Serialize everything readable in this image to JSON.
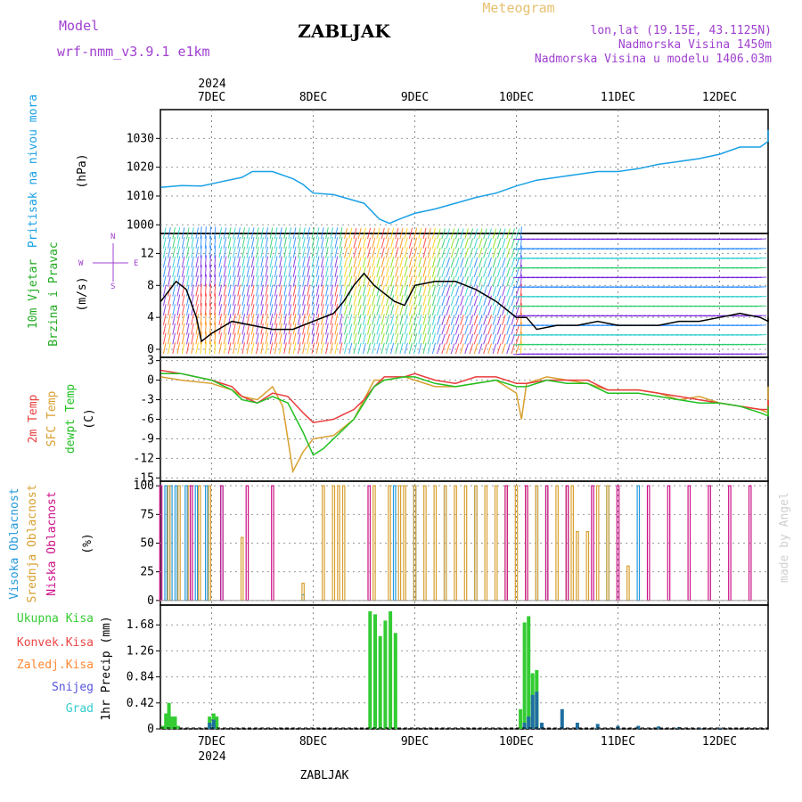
{
  "header": {
    "model_label": "Model",
    "model_name": "wrf-nmm_v3.9.1 e1km",
    "station": "ZABLJAK",
    "meteogram": "Meteogram",
    "coords": "lon,lat (19.15E, 43.1125N)",
    "elevation": "Nadmorska Visina 1450m",
    "model_elevation": "Nadmorska Visina u modelu 1406.03m",
    "footer_station": "ZABLJAK",
    "watermark": "made by Angel"
  },
  "colors": {
    "pressure": "#1aa0e6",
    "t2m": "#e83c3c",
    "tsfc": "#d8a030",
    "dewpoint": "#22c022",
    "high_cloud": "#2299dd",
    "mid_cloud": "#d8a030",
    "low_cloud": "#cc1188",
    "precip_total": "#33cc33",
    "precip_conv": "#ee4444",
    "precip_frozen": "#ff8833",
    "snow": "#5555dd",
    "graupel": "#33cccc",
    "model_text": "#a040d0",
    "wind_speed_label": "#22aa22"
  },
  "time_axis": {
    "year": "2024",
    "days": [
      "7DEC",
      "8DEC",
      "9DEC",
      "10DEC",
      "11DEC",
      "12DEC"
    ]
  },
  "panels": {
    "pressure": {
      "label": "Pritisak na nivou mora",
      "unit": "(hPa)",
      "ticks": [
        "1000",
        "1010",
        "1020",
        "1030"
      ]
    },
    "wind": {
      "label1": "10m Vjetar",
      "label2": "Brzina i Pravac",
      "unit": "(m/s)",
      "ticks": [
        "0",
        "4",
        "8",
        "12"
      ],
      "compass_w": "W",
      "compass_e": "E",
      "compass_n": "N",
      "compass_s": "S"
    },
    "temp": {
      "label1": "2m Temp",
      "label2": "SFC Temp",
      "label3": "dewpt Temp",
      "unit": "(C)",
      "ticks": [
        "-15",
        "-12",
        "-9",
        "-6",
        "-3",
        "0",
        "3"
      ]
    },
    "cloud": {
      "label1": "Visoka Oblacnost",
      "label2": "Srednja Oblacnost",
      "label3": "Niska Oblacnost",
      "unit": "(%)",
      "ticks": [
        "0",
        "25",
        "50",
        "75",
        "100"
      ]
    },
    "precip": {
      "legend": [
        "Ukupna Kisa",
        "Konvek.Kisa",
        "Zaledj.Kisa",
        "Snijeg",
        "Grad"
      ],
      "unit": "1hr Precip (mm)",
      "ticks": [
        "0",
        "0.42",
        "0.84",
        "1.26",
        "1.68"
      ]
    }
  },
  "chart_data": [
    {
      "type": "line",
      "title": "Pritisak na nivou mora",
      "ylabel": "(hPa)",
      "ylim": [
        1000,
        1034
      ],
      "x_unit": "days since 7DEC 00UTC",
      "series": [
        {
          "name": "Pritisak na nivou mora",
          "x": [
            -0.5,
            -0.3,
            -0.1,
            0.1,
            0.3,
            0.4,
            0.6,
            0.8,
            0.9,
            1.0,
            1.2,
            1.5,
            1.65,
            1.75,
            1.85,
            2.0,
            2.2,
            2.4,
            2.6,
            2.8,
            3.0,
            3.2,
            3.4,
            3.6,
            3.8,
            4.0,
            4.2,
            4.4,
            4.6,
            4.8,
            5.0,
            5.2,
            5.4,
            5.6,
            5.8,
            6.0,
            6.2,
            6.3
          ],
          "y": [
            1013,
            1013.6,
            1013.5,
            1015,
            1016.5,
            1018.5,
            1018.5,
            1016,
            1014,
            1011,
            1010.5,
            1007.5,
            1002,
            1000.5,
            1002,
            1004,
            1005.5,
            1007.5,
            1009.5,
            1011,
            1013.5,
            1015.5,
            1016.5,
            1017.5,
            1018.5,
            1018.5,
            1019.5,
            1021,
            1022,
            1023,
            1024.5,
            1027,
            1027,
            1029,
            1031.5,
            1032,
            1033,
            1032
          ]
        }
      ]
    },
    {
      "type": "line",
      "title": "10m Vjetar Brzina i Pravac",
      "ylabel": "(m/s)",
      "ylim": [
        -1,
        14.5
      ],
      "x_unit": "days since 7DEC 00UTC",
      "series": [
        {
          "name": "10m Vjetar",
          "x": [
            -0.5,
            -0.35,
            -0.25,
            -0.15,
            -0.1,
            0.0,
            0.2,
            0.4,
            0.6,
            0.8,
            1.0,
            1.2,
            1.3,
            1.4,
            1.5,
            1.6,
            1.7,
            1.8,
            1.9,
            2.0,
            2.2,
            2.4,
            2.6,
            2.8,
            3.0,
            3.1,
            3.2,
            3.4,
            3.6,
            3.8,
            4.0,
            4.2,
            4.4,
            4.6,
            4.8,
            5.0,
            5.2,
            5.4,
            5.6,
            5.8,
            6.0,
            6.2,
            6.3
          ],
          "y": [
            6,
            8.5,
            7.5,
            4,
            1,
            2,
            3.5,
            3,
            2.5,
            2.5,
            3.5,
            4.5,
            6,
            8,
            9.5,
            8,
            7,
            6,
            5.5,
            8,
            8.5,
            8.5,
            7.5,
            6,
            4,
            4,
            2.5,
            3,
            3,
            3.5,
            3,
            3,
            3,
            3.5,
            3.5,
            4,
            4.5,
            4,
            3.5,
            3.5,
            4,
            4,
            4
          ]
        }
      ]
    },
    {
      "type": "line",
      "title": "2m Temp / SFC Temp / dewpt Temp",
      "ylabel": "(C)",
      "ylim": [
        -15,
        3
      ],
      "x_unit": "days since 7DEC 00UTC",
      "series": [
        {
          "name": "2m Temp",
          "x": [
            -0.5,
            -0.3,
            0.0,
            0.2,
            0.3,
            0.45,
            0.6,
            0.75,
            0.9,
            1.0,
            1.2,
            1.4,
            1.5,
            1.6,
            1.7,
            1.9,
            2.0,
            2.2,
            2.4,
            2.6,
            2.8,
            3.0,
            3.1,
            3.3,
            3.5,
            3.7,
            3.9,
            4.0,
            4.2,
            4.4,
            4.6,
            4.8,
            5.0,
            5.2,
            5.4,
            5.6,
            5.8,
            6.0,
            6.2,
            6.3
          ],
          "y": [
            1.5,
            1,
            0,
            -1,
            -2.5,
            -3.5,
            -2,
            -2.5,
            -5,
            -6.5,
            -6,
            -4.5,
            -3,
            -1,
            0.5,
            0.5,
            1,
            0,
            -0.5,
            0.5,
            0.5,
            -0.5,
            -0.5,
            0,
            0,
            0,
            -1.5,
            -1.5,
            -1.5,
            -2,
            -2.5,
            -3,
            -3.5,
            -4,
            -4.5,
            -4.5,
            -4.5,
            -4,
            -3.5,
            -3
          ]
        },
        {
          "name": "SFC Temp",
          "x": [
            -0.5,
            -0.3,
            0.0,
            0.2,
            0.3,
            0.45,
            0.6,
            0.7,
            0.8,
            0.9,
            1.0,
            1.2,
            1.4,
            1.5,
            1.6,
            1.7,
            1.9,
            2.0,
            2.2,
            2.4,
            2.6,
            2.8,
            3.0,
            3.05,
            3.1,
            3.3,
            3.5,
            3.7,
            3.9,
            4.0,
            4.2,
            4.4,
            4.6,
            4.8,
            5.0,
            5.2,
            5.4,
            5.6,
            5.8,
            6.0,
            6.2,
            6.3
          ],
          "y": [
            0.5,
            0,
            -0.5,
            -1.5,
            -2.5,
            -3,
            -1,
            -4,
            -14,
            -11,
            -9,
            -8.5,
            -6,
            -3,
            0,
            0,
            0.5,
            0,
            -1,
            -1,
            -0.5,
            0,
            -2,
            -6,
            -0.5,
            0.5,
            0,
            -0.5,
            -1.5,
            -1.5,
            -1.5,
            -2,
            -3,
            -2.5,
            -3.5,
            -4,
            -4.5,
            -5,
            -4.5,
            -3.5,
            -2.5,
            -1
          ]
        },
        {
          "name": "dewpt Temp",
          "x": [
            -0.5,
            -0.3,
            0.0,
            0.2,
            0.3,
            0.45,
            0.6,
            0.75,
            0.9,
            1.0,
            1.1,
            1.2,
            1.4,
            1.5,
            1.6,
            1.7,
            1.9,
            2.0,
            2.2,
            2.4,
            2.6,
            2.8,
            3.0,
            3.1,
            3.3,
            3.5,
            3.7,
            3.9,
            4.0,
            4.2,
            4.4,
            4.6,
            4.8,
            5.0,
            5.2,
            5.4,
            5.6,
            5.8,
            6.0,
            6.2,
            6.3
          ],
          "y": [
            1,
            1,
            0,
            -1.5,
            -3,
            -3.5,
            -2.5,
            -3.5,
            -8,
            -11.5,
            -10.5,
            -9,
            -6,
            -3.5,
            -1,
            0,
            0.5,
            0.5,
            -0.5,
            -1,
            -0.5,
            0,
            -1,
            -1,
            0,
            -0.5,
            -0.5,
            -2,
            -2,
            -2,
            -2.5,
            -3,
            -3.5,
            -3.5,
            -4,
            -5,
            -5.5,
            -5.5,
            -5.5,
            -4.5,
            -4
          ]
        }
      ]
    },
    {
      "type": "bar",
      "title": "Visoka / Srednja / Niska Oblacnost",
      "ylabel": "(%)",
      "ylim": [
        0,
        100
      ],
      "x_unit": "days since 7DEC 00UTC",
      "series": [
        {
          "name": "Visoka Oblacnost",
          "x": [
            -0.45,
            -0.4,
            -0.35,
            -0.25,
            -0.15,
            -0.05,
            0.1,
            0.9,
            1.8,
            2.0,
            2.3,
            2.6,
            3.2,
            3.3,
            3.5,
            3.9,
            4.2
          ],
          "y": [
            100,
            100,
            100,
            100,
            100,
            100,
            100,
            5,
            100,
            100,
            100,
            100,
            100,
            100,
            100,
            100,
            100
          ]
        },
        {
          "name": "Srednja Oblacnost",
          "x": [
            -0.42,
            -0.32,
            -0.22,
            -0.12,
            -0.02,
            0.3,
            0.9,
            1.1,
            1.2,
            1.25,
            1.3,
            1.6,
            1.75,
            1.85,
            1.9,
            2.0,
            2.1,
            2.2,
            2.3,
            2.4,
            2.5,
            2.6,
            2.7,
            2.8,
            2.9,
            3.0,
            3.1,
            3.2,
            3.3,
            3.4,
            3.5,
            3.55,
            3.6,
            3.7,
            3.8,
            3.9,
            4.1
          ],
          "y": [
            100,
            100,
            100,
            100,
            100,
            55,
            15,
            100,
            100,
            100,
            100,
            100,
            100,
            100,
            100,
            100,
            100,
            100,
            100,
            100,
            100,
            100,
            100,
            100,
            100,
            100,
            100,
            100,
            100,
            100,
            100,
            100,
            60,
            60,
            100,
            100,
            30
          ]
        },
        {
          "name": "Niska Oblacnost",
          "x": [
            -0.5,
            -0.2,
            0.1,
            0.35,
            0.6,
            1.55,
            2.9,
            3.1,
            3.3,
            3.5,
            3.75,
            4.0,
            4.3,
            4.5,
            4.7,
            4.9,
            5.1,
            5.3,
            5.5,
            5.65,
            5.8,
            6.0,
            6.15,
            6.3
          ],
          "y": [
            100,
            100,
            100,
            100,
            100,
            100,
            100,
            100,
            100,
            100,
            100,
            100,
            100,
            100,
            100,
            100,
            100,
            100,
            100,
            100,
            100,
            100,
            100,
            100
          ]
        }
      ]
    },
    {
      "type": "bar",
      "title": "1hr Precip",
      "ylabel": "1hr Precip (mm)",
      "ylim": [
        0,
        2.0
      ],
      "x_unit": "days since 7DEC 00UTC",
      "series": [
        {
          "name": "Ukupna Kisa",
          "x": [
            -0.48,
            -0.45,
            -0.42,
            -0.39,
            -0.36,
            -0.33,
            -0.02,
            0.02,
            0.05,
            1.56,
            1.61,
            1.66,
            1.71,
            1.76,
            1.81,
            3.04,
            3.08,
            3.12,
            3.16,
            3.2
          ],
          "y": [
            0.05,
            0.25,
            0.42,
            0.2,
            0.2,
            0.05,
            0.2,
            0.25,
            0.2,
            1.9,
            1.85,
            1.5,
            1.75,
            1.9,
            1.55,
            0.32,
            1.72,
            1.82,
            0.9,
            0.95
          ]
        },
        {
          "name": "Snijeg",
          "x": [
            -0.02,
            0.02,
            3.08,
            3.12,
            3.16,
            3.2,
            3.25,
            3.45,
            3.6,
            3.8,
            4.0,
            4.2,
            4.4,
            4.6,
            4.8,
            5.0
          ],
          "y": [
            0.1,
            0.15,
            0.1,
            0.2,
            0.55,
            0.6,
            0.1,
            0.32,
            0.1,
            0.08,
            0.05,
            0.05,
            0.04,
            0.03,
            0.02,
            0.02
          ]
        }
      ]
    }
  ]
}
